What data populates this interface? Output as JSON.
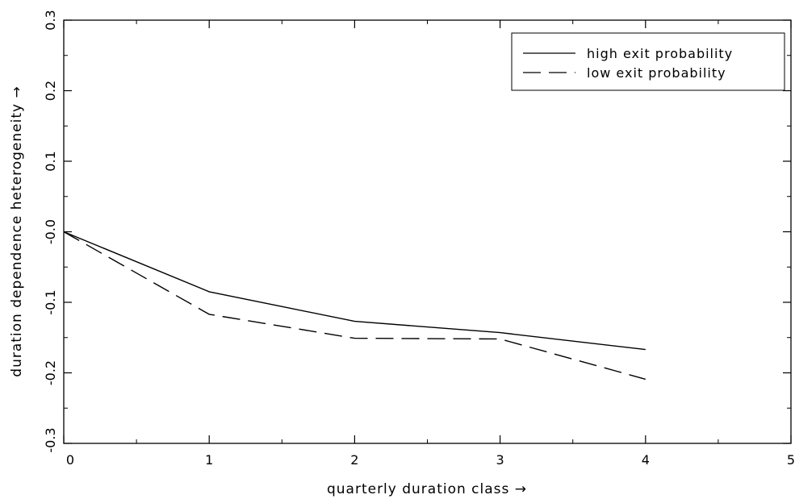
{
  "chart_data": {
    "type": "line",
    "xlabel": "quarterly duration class →",
    "ylabel": "duration dependence heterogeneity →",
    "xlim": [
      0,
      5
    ],
    "ylim": [
      -0.3,
      0.3
    ],
    "x_ticks": [
      0,
      1,
      2,
      3,
      4,
      5
    ],
    "x_tick_labels": [
      "0",
      "1",
      "2",
      "3",
      "4",
      "5"
    ],
    "y_ticks": [
      -0.3,
      -0.2,
      -0.1,
      0.0,
      0.1,
      0.2,
      0.3
    ],
    "y_tick_labels": [
      "-0.3",
      "-0.2",
      "-0.1",
      "-0.0",
      "0.1",
      "0.2",
      "0.3"
    ],
    "grid": false,
    "legend_position": "top-right",
    "series": [
      {
        "name": "high exit probability",
        "style": "solid",
        "color": "#000000",
        "x": [
          0,
          1,
          2,
          3,
          4
        ],
        "y": [
          0.0,
          -0.085,
          -0.127,
          -0.143,
          -0.167
        ]
      },
      {
        "name": "low exit probability",
        "style": "dashed",
        "color": "#000000",
        "x": [
          0,
          1,
          2,
          3,
          4
        ],
        "y": [
          0.0,
          -0.117,
          -0.151,
          -0.152,
          -0.209
        ]
      }
    ]
  }
}
